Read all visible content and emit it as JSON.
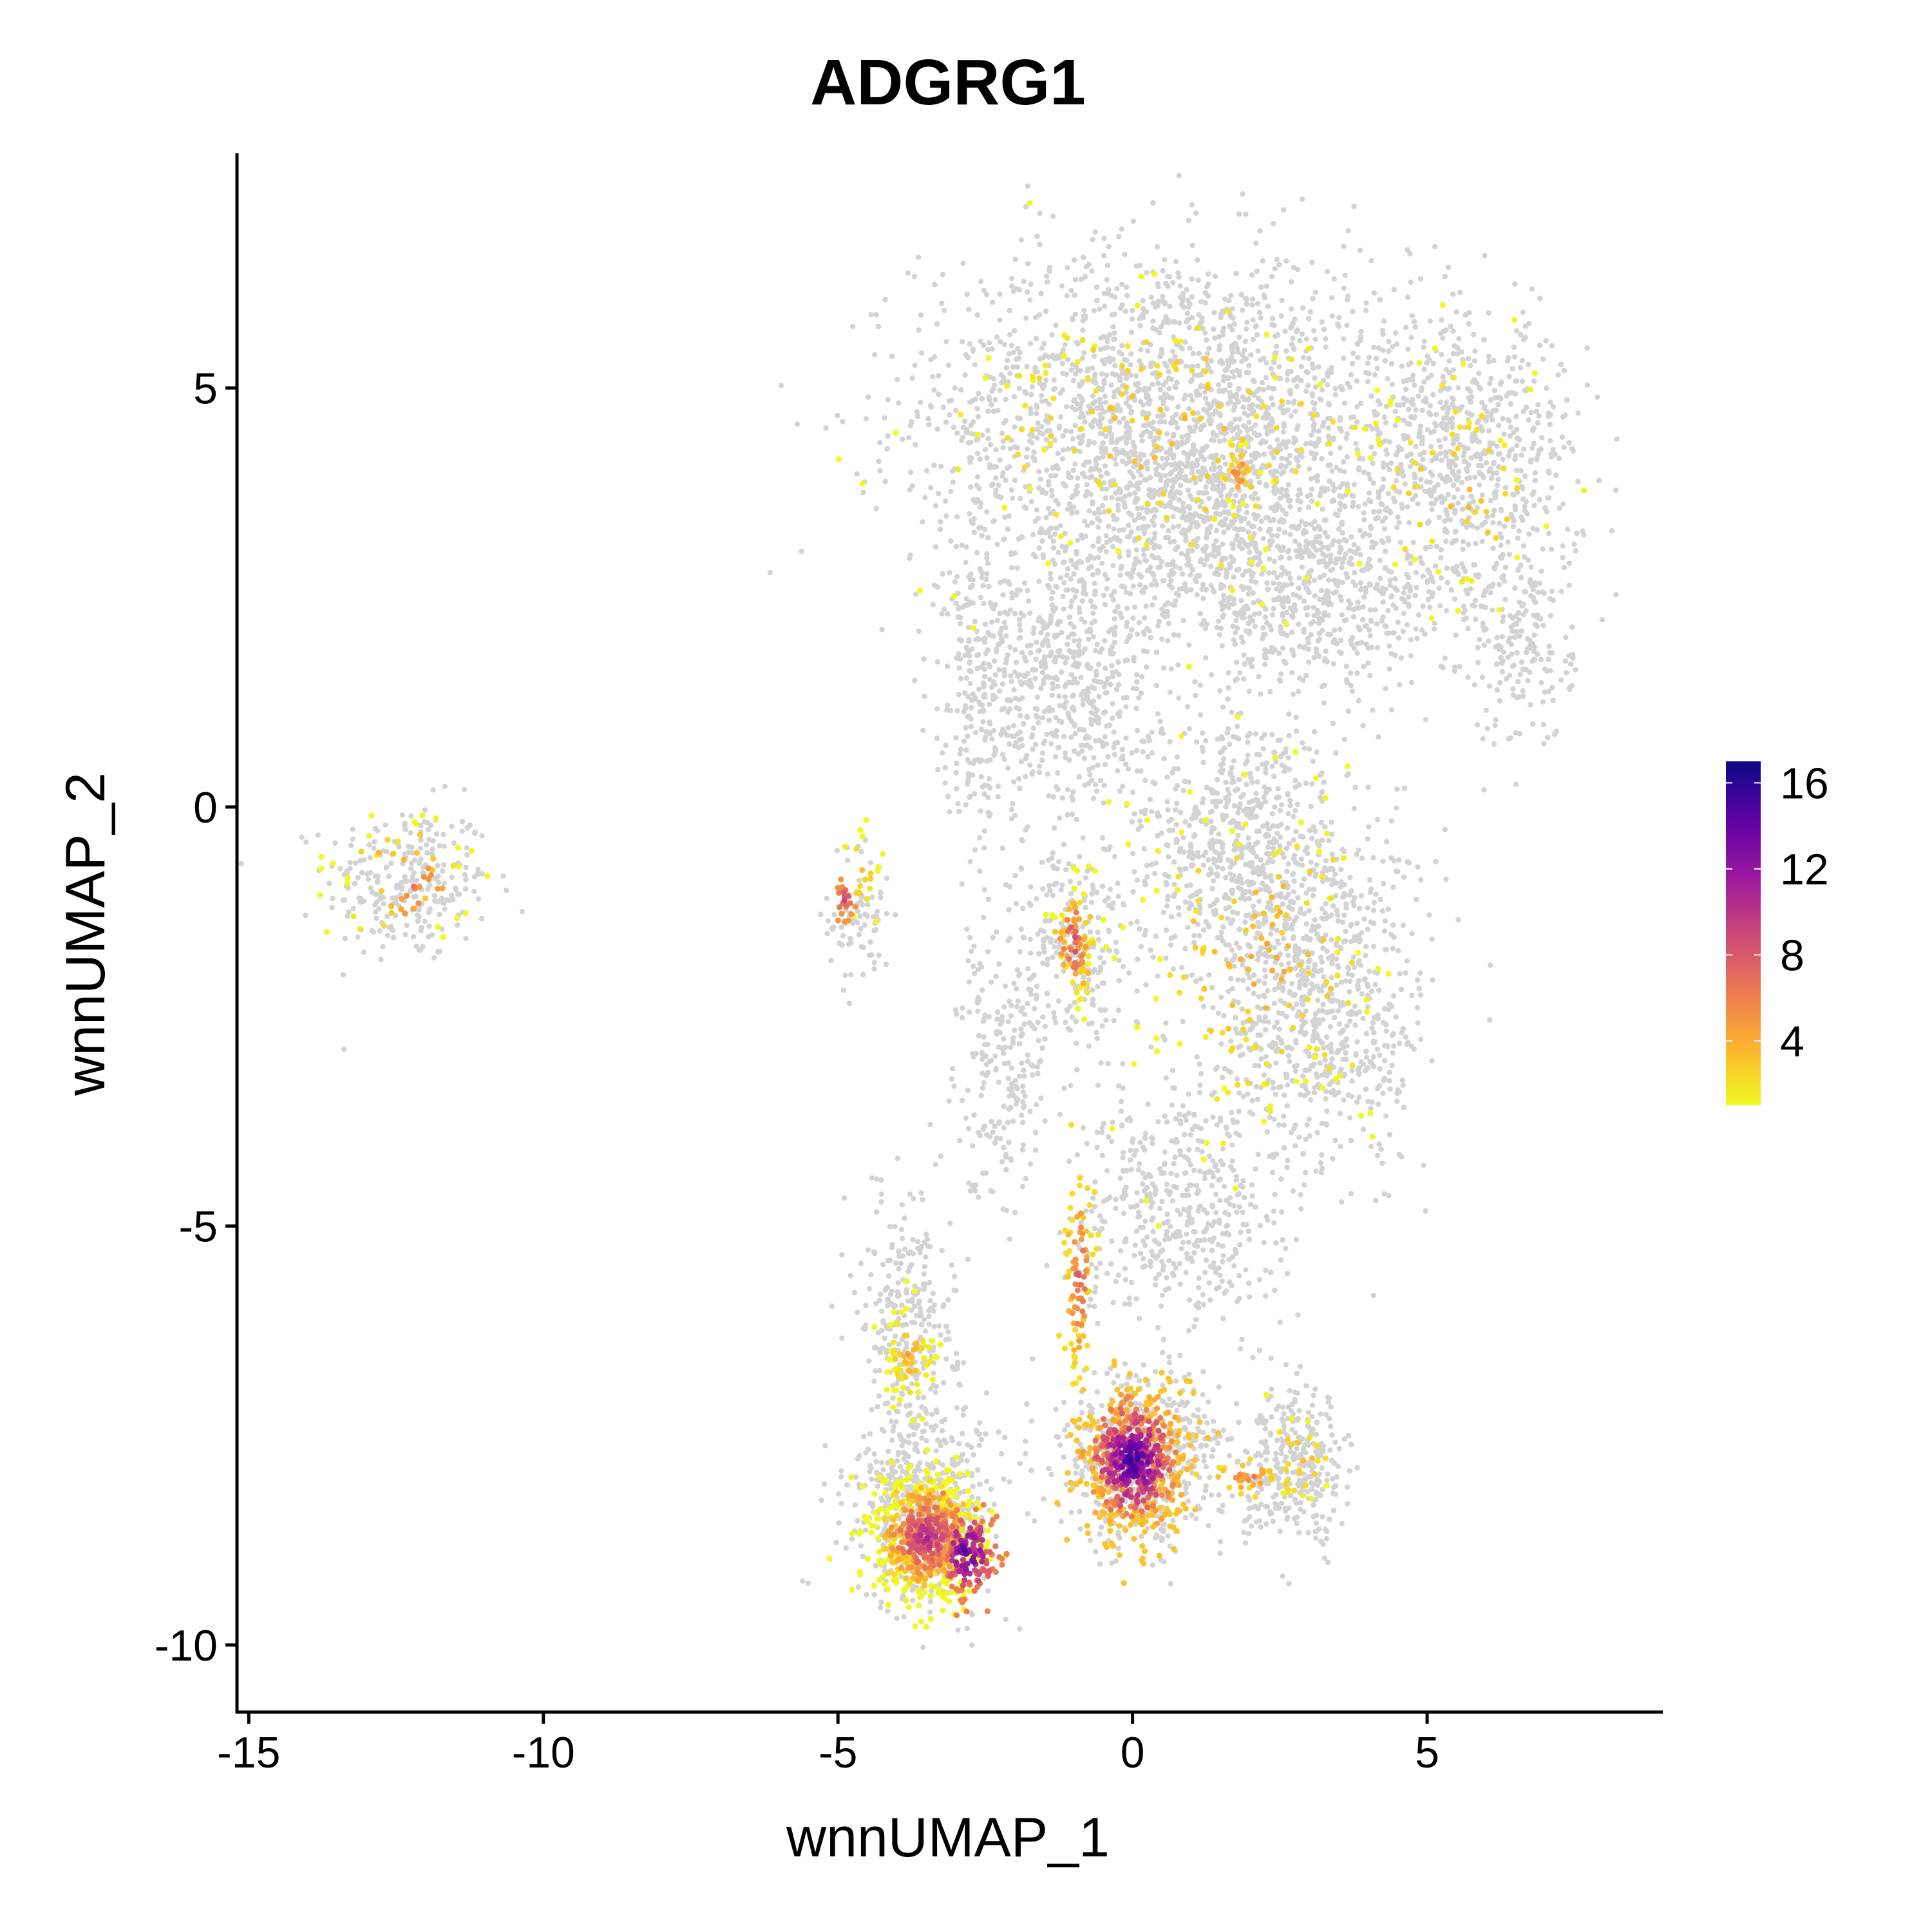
{
  "chart_data": {
    "type": "scatter",
    "title": "ADGRG1",
    "xlabel": "wnnUMAP_1",
    "ylabel": "wnnUMAP_2",
    "xlim": [
      -15.2,
      9.0
    ],
    "ylim": [
      -10.8,
      7.8
    ],
    "x_ticks": [
      -15,
      -10,
      -5,
      0,
      5
    ],
    "y_ticks": [
      -10,
      -5,
      0,
      5
    ],
    "x_tick_labels": [
      "-15",
      "-10",
      "-5",
      "0",
      "5"
    ],
    "y_tick_labels": [
      "-10",
      "-5",
      "0",
      "5"
    ],
    "grid": false,
    "background_point_color": "#d3d3d3",
    "colorbar": {
      "position": "right",
      "min": 1,
      "max": 17,
      "ticks": [
        4,
        8,
        12,
        16
      ],
      "tick_labels": [
        "4",
        "8",
        "12",
        "16"
      ],
      "palette": "plasma-reversed",
      "colors": [
        "#f0f921",
        "#fdb42f",
        "#ed7953",
        "#cc4778",
        "#9c179e",
        "#5c01a6",
        "#0d0887"
      ]
    },
    "background_clusters": [
      {
        "cx": -12.3,
        "cy": -0.9,
        "rx": 1.4,
        "ry": 0.95,
        "n": 260
      },
      {
        "cx": -4.6,
        "cy": -1.3,
        "rx": 0.55,
        "ry": 0.9,
        "n": 80
      },
      {
        "cx": 0.6,
        "cy": 4.8,
        "rx": 4.2,
        "ry": 1.9,
        "n": 1700
      },
      {
        "cx": 1.2,
        "cy": 3.4,
        "rx": 3.6,
        "ry": 1.5,
        "n": 900
      },
      {
        "cx": 5.6,
        "cy": 4.2,
        "rx": 2.0,
        "ry": 1.6,
        "n": 650
      },
      {
        "cx": 6.6,
        "cy": 2.0,
        "rx": 0.9,
        "ry": 1.3,
        "n": 200
      },
      {
        "cx": 3.2,
        "cy": 2.4,
        "rx": 2.4,
        "ry": 1.0,
        "n": 450
      },
      {
        "cx": -1.2,
        "cy": 1.5,
        "rx": 1.6,
        "ry": 1.6,
        "n": 550
      },
      {
        "cx": 1.8,
        "cy": -0.4,
        "rx": 1.9,
        "ry": 1.7,
        "n": 700
      },
      {
        "cx": 3.2,
        "cy": -2.4,
        "rx": 1.8,
        "ry": 2.0,
        "n": 750
      },
      {
        "cx": -1.0,
        "cy": -1.6,
        "rx": 1.0,
        "ry": 1.2,
        "n": 220
      },
      {
        "cx": 0.8,
        "cy": -4.8,
        "rx": 1.7,
        "ry": 1.5,
        "n": 500
      },
      {
        "cx": -3.8,
        "cy": -6.0,
        "rx": 0.8,
        "ry": 1.4,
        "n": 260
      },
      {
        "cx": -3.5,
        "cy": -8.3,
        "rx": 1.3,
        "ry": 1.2,
        "n": 550
      },
      {
        "cx": 0.1,
        "cy": -7.8,
        "rx": 1.4,
        "ry": 1.0,
        "n": 550
      },
      {
        "cx": 2.8,
        "cy": -7.9,
        "rx": 0.9,
        "ry": 0.9,
        "n": 320
      },
      {
        "cx": -2.2,
        "cy": -3.0,
        "rx": 0.8,
        "ry": 1.6,
        "n": 220
      },
      {
        "cx": -2.6,
        "cy": 1.6,
        "rx": 0.7,
        "ry": 2.5,
        "n": 230
      }
    ],
    "expression_clusters": [
      {
        "cx": -3.5,
        "cy": -8.7,
        "rx": 0.9,
        "ry": 0.7,
        "n": 650,
        "vmin": 1,
        "vmax": 12
      },
      {
        "cx": -2.8,
        "cy": -8.9,
        "rx": 0.5,
        "ry": 0.5,
        "n": 160,
        "vmin": 6,
        "vmax": 16
      },
      {
        "cx": 0.0,
        "cy": -7.8,
        "rx": 0.9,
        "ry": 0.85,
        "n": 650,
        "vmin": 3,
        "vmax": 17
      },
      {
        "cx": -0.9,
        "cy": -5.6,
        "rx": 0.25,
        "ry": 1.2,
        "n": 90,
        "vmin": 2,
        "vmax": 9
      },
      {
        "cx": -1.0,
        "cy": -1.6,
        "rx": 0.4,
        "ry": 0.8,
        "n": 90,
        "vmin": 1,
        "vmax": 10
      },
      {
        "cx": -4.9,
        "cy": -1.1,
        "rx": 0.15,
        "ry": 0.2,
        "n": 25,
        "vmin": 5,
        "vmax": 10
      },
      {
        "cx": 2.0,
        "cy": -8.0,
        "rx": 0.7,
        "ry": 0.2,
        "n": 40,
        "vmin": 2,
        "vmax": 7
      },
      {
        "cx": -3.8,
        "cy": -6.5,
        "rx": 0.4,
        "ry": 0.7,
        "n": 70,
        "vmin": 1,
        "vmax": 5
      },
      {
        "cx": 1.8,
        "cy": 4.0,
        "rx": 0.3,
        "ry": 0.4,
        "n": 30,
        "vmin": 1,
        "vmax": 7
      },
      {
        "cx": 0.6,
        "cy": 4.5,
        "rx": 4.0,
        "ry": 2.0,
        "n": 160,
        "vmin": 1,
        "vmax": 4
      },
      {
        "cx": 2.2,
        "cy": -1.8,
        "rx": 2.2,
        "ry": 2.2,
        "n": 160,
        "vmin": 1,
        "vmax": 5
      },
      {
        "cx": 5.5,
        "cy": 3.8,
        "rx": 1.8,
        "ry": 1.6,
        "n": 60,
        "vmin": 1,
        "vmax": 4
      },
      {
        "cx": -12.3,
        "cy": -0.9,
        "rx": 1.2,
        "ry": 0.8,
        "n": 55,
        "vmin": 1,
        "vmax": 8
      },
      {
        "cx": -4.6,
        "cy": -0.8,
        "rx": 0.4,
        "ry": 0.5,
        "n": 20,
        "vmin": 1,
        "vmax": 4
      },
      {
        "cx": 2.8,
        "cy": -7.8,
        "rx": 0.7,
        "ry": 0.7,
        "n": 25,
        "vmin": 1,
        "vmax": 4
      }
    ]
  }
}
